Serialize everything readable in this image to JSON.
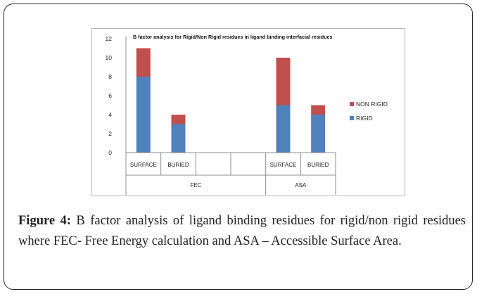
{
  "chart_data": {
    "type": "bar",
    "stacked": true,
    "title": "B factor analysis for Rigid/Non Rigid residues in ligand binding interfacial residues",
    "categories": [
      "SURFACE",
      "BURIED",
      "",
      "",
      "SURFACE",
      "BURIED"
    ],
    "groups": [
      {
        "label": "FEC",
        "span": [
          0,
          3
        ]
      },
      {
        "label": "ASA",
        "span": [
          4,
          5
        ]
      }
    ],
    "series": [
      {
        "name": "RIGID",
        "color": "#4f81bd",
        "values": [
          8,
          3,
          0,
          0,
          5,
          4
        ]
      },
      {
        "name": "NON RIGID",
        "color": "#c0504d",
        "values": [
          3,
          1,
          0,
          0,
          5,
          1
        ]
      }
    ],
    "ylim": [
      0,
      12
    ],
    "yticks": [
      "0",
      "2",
      "4",
      "6",
      "8",
      "10",
      "12"
    ],
    "legend_position": "right",
    "grid": false
  },
  "caption": {
    "label": "Figure 4:",
    "text": " B factor analysis of ligand binding residues for rigid/non rigid residues where FEC- Free Energy calculation and ASA – Accessible Surface Area."
  }
}
